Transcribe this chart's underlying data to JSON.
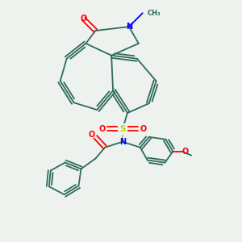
{
  "bg_color": "#eef2ee",
  "bond_color": "#2d6b5e",
  "atom_colors": {
    "N": "#0000ff",
    "O": "#ff0000",
    "S": "#cccc00",
    "C": "#2d6b5e"
  }
}
